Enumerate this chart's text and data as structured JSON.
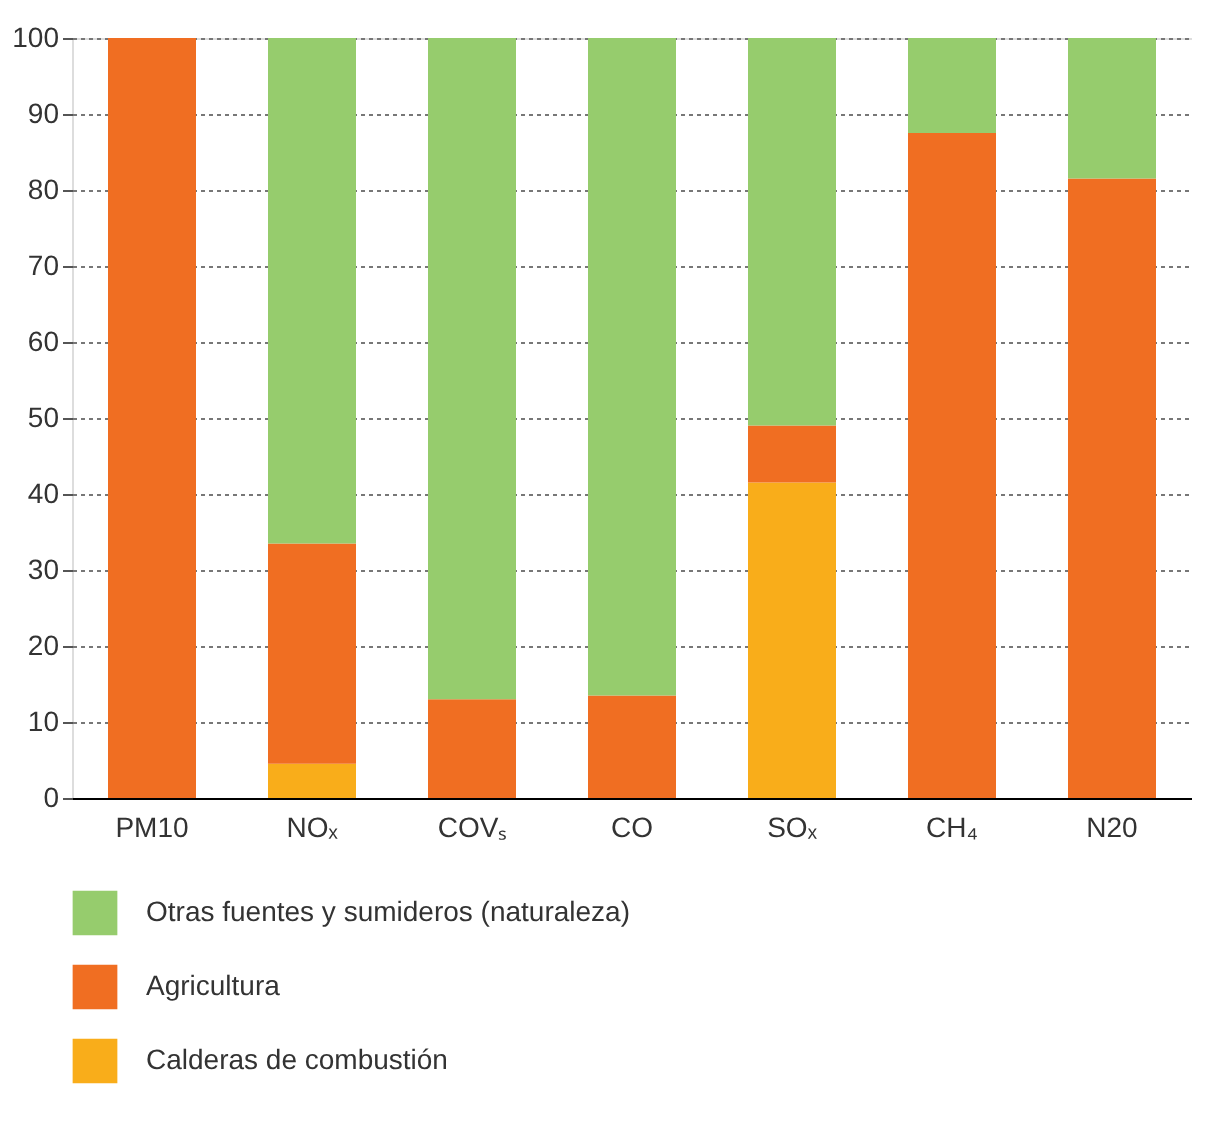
{
  "chart_data": {
    "type": "bar",
    "stacked": true,
    "categories": [
      "PM10",
      "NOₓ",
      "COVₛ",
      "CO",
      "SOₓ",
      "CH₄",
      "N20"
    ],
    "series": [
      {
        "name": "Calderas de combustión",
        "color": "#f9ad1a",
        "values": [
          0,
          4.5,
          0,
          0,
          41.5,
          0,
          0
        ]
      },
      {
        "name": "Agricultura",
        "color": "#f06e22",
        "values": [
          100,
          29,
          13,
          13.5,
          7.5,
          87.5,
          81.5
        ]
      },
      {
        "name": "Otras fuentes y sumideros (naturaleza)",
        "color": "#96cc6d",
        "values": [
          0,
          66.5,
          87,
          86.5,
          51,
          12.5,
          18.5
        ]
      }
    ],
    "ylim": [
      0,
      100
    ],
    "yticks": [
      0,
      10,
      20,
      30,
      40,
      50,
      60,
      70,
      80,
      90,
      100
    ],
    "grid": "y",
    "legend": "bottom"
  }
}
